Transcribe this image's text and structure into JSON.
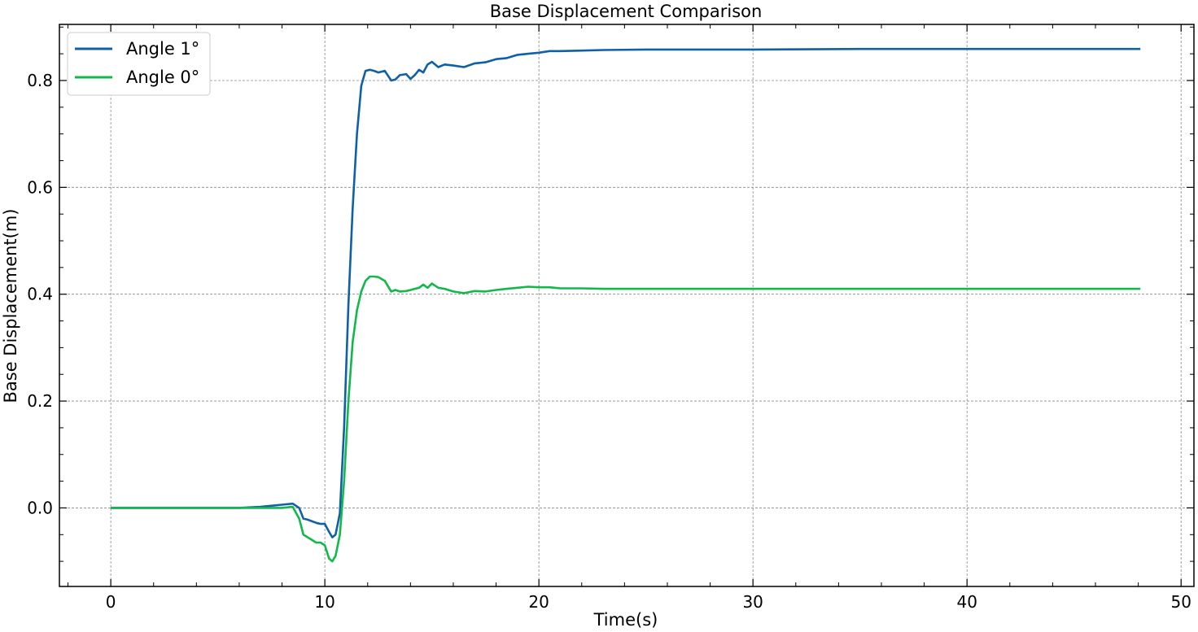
{
  "chart_data": {
    "type": "line",
    "title": "Base Displacement Comparison",
    "xlabel": "Time(s)",
    "ylabel": "Base Displacement(m)",
    "xlim": [
      -2.4,
      50.6
    ],
    "ylim": [
      -0.147,
      0.905
    ],
    "xticks": [
      0,
      10,
      20,
      30,
      40,
      50
    ],
    "xtick_labels": [
      "0",
      "10",
      "20",
      "30",
      "40",
      "50"
    ],
    "yticks": [
      0.0,
      0.2,
      0.4,
      0.6,
      0.8
    ],
    "ytick_labels": [
      "0.0",
      "0.2",
      "0.4",
      "0.6",
      "0.8"
    ],
    "grid": true,
    "legend_position": "top-left",
    "series": [
      {
        "name": "Angle 1°",
        "color": "#1060a8",
        "x": [
          0,
          2,
          4,
          6,
          7,
          7.5,
          8,
          8.5,
          8.8,
          9.0,
          9.2,
          9.4,
          9.6,
          9.8,
          10.0,
          10.2,
          10.35,
          10.5,
          10.7,
          10.9,
          11.1,
          11.3,
          11.5,
          11.7,
          11.9,
          12.1,
          12.3,
          12.5,
          12.8,
          13.1,
          13.3,
          13.5,
          13.8,
          14.0,
          14.2,
          14.4,
          14.6,
          14.8,
          15.0,
          15.3,
          15.6,
          16.0,
          16.5,
          17.0,
          17.5,
          18.0,
          18.5,
          19.0,
          19.5,
          20.0,
          20.5,
          21.0,
          22.0,
          23.0,
          25.0,
          30.0,
          35.0,
          40.0,
          45.0,
          48.1
        ],
        "y": [
          0.0,
          0.0,
          0.0,
          0.0,
          0.002,
          0.004,
          0.006,
          0.008,
          0.0,
          -0.02,
          -0.022,
          -0.025,
          -0.028,
          -0.03,
          -0.03,
          -0.045,
          -0.055,
          -0.05,
          -0.01,
          0.15,
          0.38,
          0.56,
          0.7,
          0.79,
          0.818,
          0.82,
          0.818,
          0.815,
          0.818,
          0.8,
          0.802,
          0.81,
          0.812,
          0.803,
          0.81,
          0.82,
          0.815,
          0.83,
          0.835,
          0.825,
          0.83,
          0.828,
          0.825,
          0.832,
          0.834,
          0.84,
          0.842,
          0.848,
          0.85,
          0.852,
          0.855,
          0.855,
          0.856,
          0.857,
          0.858,
          0.858,
          0.859,
          0.859,
          0.859,
          0.859
        ]
      },
      {
        "name": "Angle 0°",
        "color": "#12b84a",
        "x": [
          0,
          2,
          4,
          6,
          7,
          7.5,
          8,
          8.5,
          8.8,
          9.0,
          9.2,
          9.4,
          9.6,
          9.8,
          10.0,
          10.2,
          10.35,
          10.5,
          10.7,
          10.9,
          11.1,
          11.3,
          11.5,
          11.7,
          11.9,
          12.1,
          12.3,
          12.5,
          12.8,
          13.1,
          13.3,
          13.5,
          13.8,
          14.0,
          14.2,
          14.4,
          14.6,
          14.8,
          15.0,
          15.3,
          15.6,
          16.0,
          16.5,
          17.0,
          17.5,
          18.0,
          18.5,
          19.0,
          19.5,
          20.0,
          20.5,
          21.0,
          22.0,
          23.0,
          25.0,
          30.0,
          35.0,
          40.0,
          45.0,
          48.1
        ],
        "y": [
          0.0,
          0.0,
          0.0,
          0.0,
          0.0,
          0.0,
          0.0,
          0.002,
          -0.02,
          -0.05,
          -0.055,
          -0.06,
          -0.065,
          -0.065,
          -0.07,
          -0.095,
          -0.1,
          -0.09,
          -0.05,
          0.05,
          0.2,
          0.31,
          0.37,
          0.405,
          0.425,
          0.433,
          0.433,
          0.432,
          0.425,
          0.405,
          0.408,
          0.405,
          0.406,
          0.408,
          0.41,
          0.412,
          0.418,
          0.412,
          0.42,
          0.412,
          0.41,
          0.405,
          0.402,
          0.406,
          0.405,
          0.408,
          0.41,
          0.412,
          0.414,
          0.413,
          0.413,
          0.411,
          0.411,
          0.41,
          0.41,
          0.41,
          0.41,
          0.41,
          0.41,
          0.41
        ]
      }
    ]
  }
}
